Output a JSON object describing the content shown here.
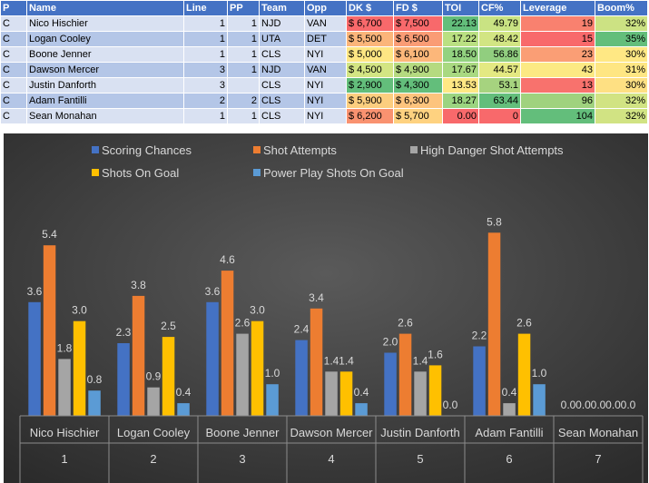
{
  "table": {
    "headers": [
      "P",
      "Name",
      "Line",
      "PP",
      "Team",
      "Opp",
      "DK $",
      "FD $",
      "TOI",
      "CF%",
      "Leverage",
      "Boom%"
    ],
    "rows": [
      {
        "p": "C",
        "name": "Nico Hischier",
        "line": "1",
        "pp": "1",
        "team": "NJD",
        "opp": "VAN",
        "dk": "$ 6,700",
        "fd": "$ 7,500",
        "toi": "22.13",
        "cf": "49.79",
        "lev": "19",
        "boom": "32%"
      },
      {
        "p": "C",
        "name": "Logan Cooley",
        "line": "1",
        "pp": "1",
        "team": "UTA",
        "opp": "DET",
        "dk": "$ 5,500",
        "fd": "$ 6,500",
        "toi": "17.22",
        "cf": "48.42",
        "lev": "15",
        "boom": "35%"
      },
      {
        "p": "C",
        "name": "Boone Jenner",
        "line": "1",
        "pp": "1",
        "team": "CLS",
        "opp": "NYI",
        "dk": "$ 5,000",
        "fd": "$ 6,100",
        "toi": "18.50",
        "cf": "56.86",
        "lev": "23",
        "boom": "30%"
      },
      {
        "p": "C",
        "name": "Dawson Mercer",
        "line": "3",
        "pp": "1",
        "team": "NJD",
        "opp": "VAN",
        "dk": "$ 4,500",
        "fd": "$ 4,900",
        "toi": "17.67",
        "cf": "44.57",
        "lev": "43",
        "boom": "31%"
      },
      {
        "p": "C",
        "name": "Justin Danforth",
        "line": "3",
        "pp": "",
        "team": "CLS",
        "opp": "NYI",
        "dk": "$ 2,900",
        "fd": "$ 4,300",
        "toi": "13.53",
        "cf": "53.1",
        "lev": "13",
        "boom": "30%"
      },
      {
        "p": "C",
        "name": "Adam Fantilli",
        "line": "2",
        "pp": "2",
        "team": "CLS",
        "opp": "NYI",
        "dk": "$ 5,900",
        "fd": "$ 6,300",
        "toi": "18.27",
        "cf": "63.44",
        "lev": "96",
        "boom": "32%"
      },
      {
        "p": "C",
        "name": "Sean Monahan",
        "line": "1",
        "pp": "1",
        "team": "CLS",
        "opp": "NYI",
        "dk": "$ 6,200",
        "fd": "$ 5,700",
        "toi": "0.00",
        "cf": "0",
        "lev": "104",
        "boom": "32%"
      }
    ],
    "colors": {
      "dk": [
        "#F8696B",
        "#FBB57A",
        "#FEE683",
        "#D3E583",
        "#63BE7B",
        "#FCCE7F",
        "#F99270"
      ],
      "fd": [
        "#F8696B",
        "#FA9C75",
        "#FCB77A",
        "#B5DA80",
        "#63BE7B",
        "#FDC47D",
        "#FED280"
      ],
      "toi": [
        "#63BE7B",
        "#BAE082",
        "#92D280",
        "#A9D981",
        "#FFE884",
        "#9BD480",
        "#F8696B"
      ],
      "cf": [
        "#C9E383",
        "#D2E583",
        "#91CE7F",
        "#E4E982",
        "#A6D37F",
        "#63BE7B",
        "#F8696B"
      ],
      "lev": [
        "#F9816F",
        "#F8696B",
        "#FA9E75",
        "#FCE983",
        "#F8726D",
        "#9FD27E",
        "#63BE7B"
      ],
      "boom": [
        "#CCE283",
        "#63BE7B",
        "#FFE884",
        "#FEE683",
        "#FEE083",
        "#D1E383",
        "#D1E383"
      ]
    }
  },
  "chart_data": {
    "type": "bar",
    "categories": [
      {
        "name": "Nico Hischier",
        "index": "1"
      },
      {
        "name": "Logan Cooley",
        "index": "2"
      },
      {
        "name": "Boone Jenner",
        "index": "3"
      },
      {
        "name": "Dawson Mercer",
        "index": "4"
      },
      {
        "name": "Justin Danforth",
        "index": "5"
      },
      {
        "name": "Adam Fantilli",
        "index": "6"
      },
      {
        "name": "Sean Monahan",
        "index": "7"
      }
    ],
    "series": [
      {
        "name": "Scoring Chances",
        "color": "#4472C4",
        "values": [
          3.6,
          2.3,
          3.6,
          2.4,
          2.0,
          2.2,
          0.0
        ]
      },
      {
        "name": "Shot Attempts",
        "color": "#ED7D31",
        "values": [
          5.4,
          3.8,
          4.6,
          3.4,
          2.6,
          5.8,
          0.0
        ]
      },
      {
        "name": "High Danger Shot Attempts",
        "color": "#A5A5A5",
        "values": [
          1.8,
          0.9,
          2.6,
          1.4,
          1.4,
          0.4,
          0.0
        ]
      },
      {
        "name": "Shots On Goal",
        "color": "#FFC000",
        "values": [
          3.0,
          2.5,
          3.0,
          1.4,
          1.6,
          2.6,
          0.0
        ]
      },
      {
        "name": "Power Play Shots On Goal",
        "color": "#5B9BD5",
        "values": [
          0.8,
          0.4,
          1.0,
          0.4,
          0.0,
          1.0,
          0.0
        ]
      }
    ],
    "data_labels": [
      [
        "3.6",
        "5.4",
        "1.8",
        "3.0",
        "0.8"
      ],
      [
        "2.3",
        "3.8",
        "0.9",
        "2.5",
        "0.4"
      ],
      [
        "3.6",
        "4.6",
        "2.6",
        "3.0",
        "1.0"
      ],
      [
        "2.4",
        "3.4",
        "1.4",
        "1.4",
        "0.4"
      ],
      [
        "2.0",
        "2.6",
        "1.4",
        "1.6",
        "0.0"
      ],
      [
        "2.2",
        "5.8",
        "0.4",
        "2.6",
        "1.0"
      ],
      [
        "0.0",
        "0.0",
        "0.0",
        "0.0",
        "0.0"
      ]
    ],
    "ylim": [
      0,
      6.5
    ],
    "legend_position": "top",
    "background": "#404040"
  }
}
